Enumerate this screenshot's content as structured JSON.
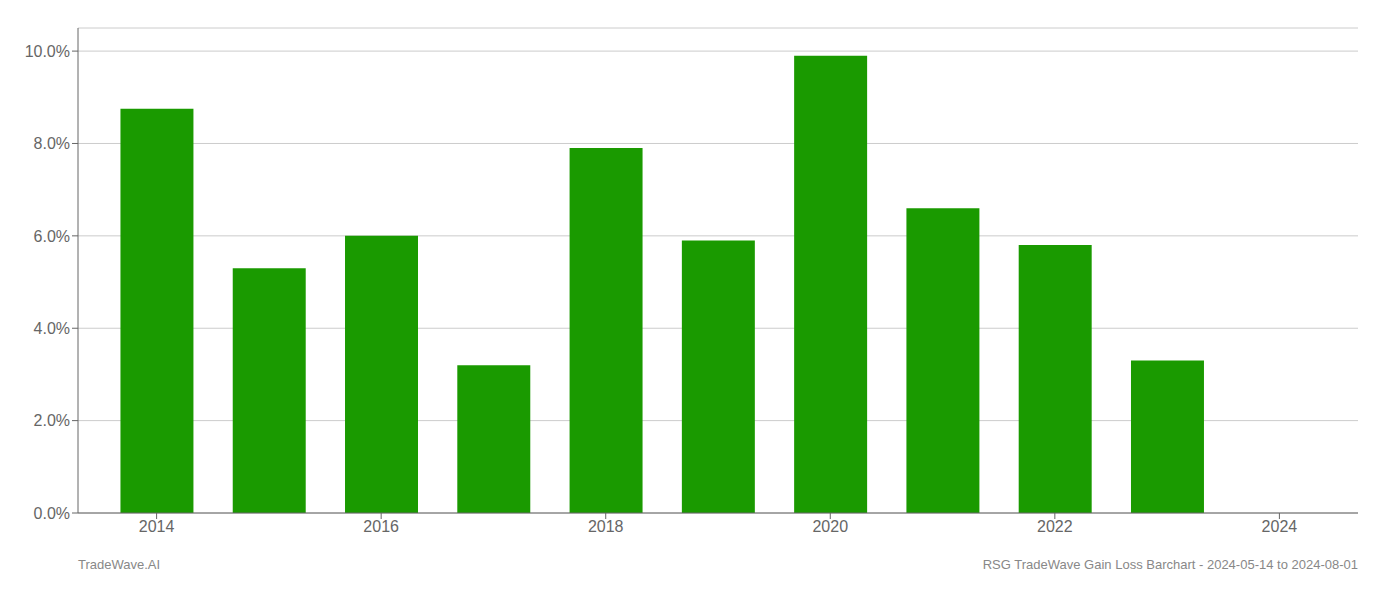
{
  "chart_data": {
    "type": "bar",
    "x": [
      2014,
      2015,
      2016,
      2017,
      2018,
      2019,
      2020,
      2021,
      2022,
      2023
    ],
    "values": [
      0.0875,
      0.053,
      0.06,
      0.032,
      0.079,
      0.059,
      0.099,
      0.066,
      0.058,
      0.033
    ],
    "color": "#1a9a00",
    "xlim": [
      2013.3,
      2024.7
    ],
    "xticks": [
      2014,
      2016,
      2018,
      2020,
      2022,
      2024
    ],
    "ylim": [
      0,
      0.105
    ],
    "yticks": [
      {
        "value": 0,
        "label": "0.0%"
      },
      {
        "value": 0.02,
        "label": "2.0%"
      },
      {
        "value": 0.04,
        "label": "4.0%"
      },
      {
        "value": 0.06,
        "label": "6.0%"
      },
      {
        "value": 0.08,
        "label": "8.0%"
      },
      {
        "value": 0.1,
        "label": "10.0%"
      }
    ],
    "grid": true,
    "annotations": [
      "TradeWave.AI",
      "RSG TradeWave Gain Loss Barchart - 2024-05-14 to 2024-08-01"
    ]
  }
}
